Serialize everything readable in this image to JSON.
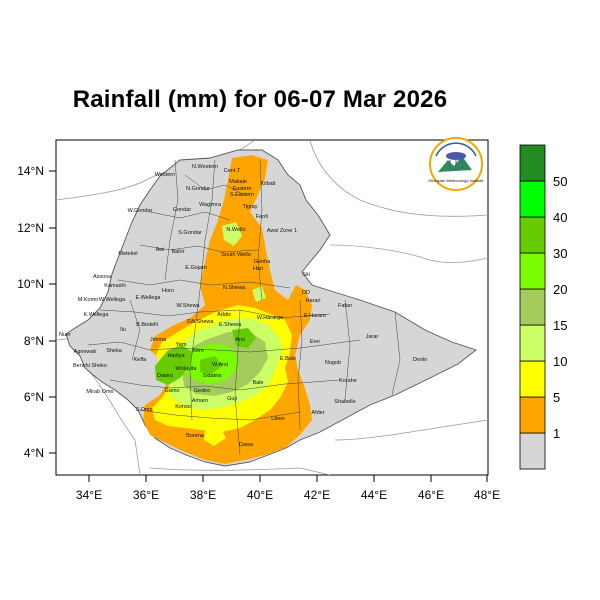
{
  "title": "Rainfall (mm) for 06-07 Mar 2026",
  "x_ticks": [
    "34°E",
    "36°E",
    "38°E",
    "40°E",
    "42°E",
    "44°E",
    "46°E",
    "48°E"
  ],
  "y_ticks": [
    "14°N",
    "12°N",
    "10°N",
    "8°N",
    "6°N",
    "4°N"
  ],
  "colorbar": {
    "colors": [
      "#d6d6d6",
      "#ffa500",
      "#ffff00",
      "#ccff66",
      "#a3cc5c",
      "#7cfc00",
      "#66cc00",
      "#00ff00",
      "#228b22"
    ],
    "labels": [
      "1",
      "5",
      "10",
      "15",
      "20",
      "30",
      "40",
      "50"
    ]
  },
  "logo_text": "Ethiopian Meteorology Institute",
  "regions": [
    "N.Western",
    "Cent.T",
    "Makale",
    "Eastern",
    "Western",
    "Kilbati",
    "N.Gondar",
    "S.Eastern",
    "Wagimra",
    "Tigray",
    "W.Gondar",
    "Gondar",
    "Fanti",
    "Awsi Zone 1",
    "S.Gondar",
    "N.Wello",
    "Metekel",
    "Awi",
    "Bahir",
    "South Wello",
    "Gonha",
    "E.Gojam",
    "Hari",
    "Siti",
    "Assosa",
    "Kamashi",
    "Horo",
    "M.Komo",
    "W.Wellega",
    "E.Wellega",
    "N.Shewa",
    "DD",
    "Harari",
    "Fafan",
    "K.Wellega",
    "W.Shewa",
    "Addis",
    "W.Hararge",
    "E.Harare",
    "Nuer",
    "Ilu",
    "B.Bedelli",
    "SW.Shewa",
    "E.Shewa",
    "Jarar",
    "Agnewak",
    "Sheka",
    "Jimma",
    "Yem",
    "Kem",
    "Arsi",
    "Erer",
    "Benchi Sheko",
    "Keffa",
    "Hadiya",
    "Wolayita",
    "W.Arsi",
    "E.Bale",
    "Nogob",
    "Doolo",
    "Mirab Omo",
    "Dawro",
    "Gamo",
    "Sidama",
    "Bale",
    "Korahe",
    "S.Omo",
    "Konso",
    "Amaro",
    "Gedeo",
    "Guji",
    "Shabelle",
    "Afder",
    "Liben",
    "Borena",
    "Dawa"
  ]
}
